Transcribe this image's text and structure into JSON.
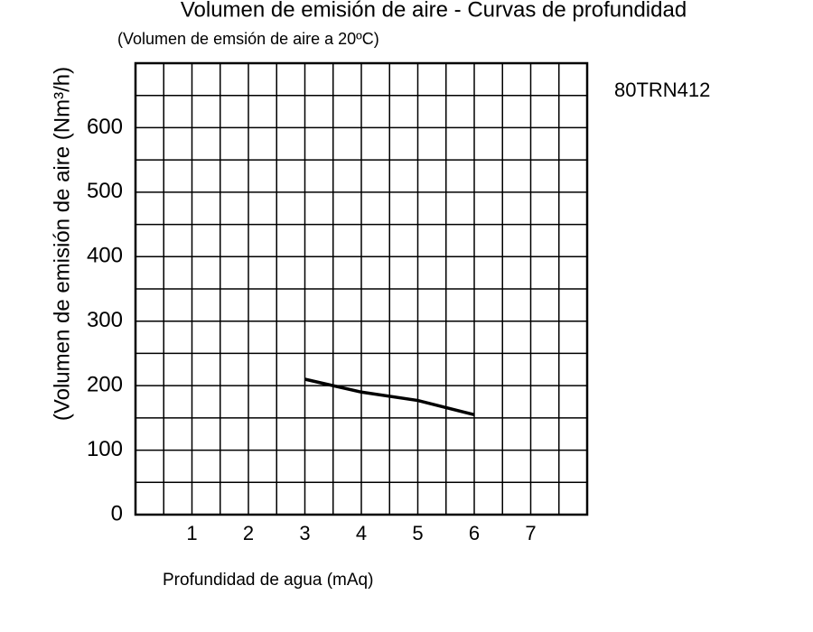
{
  "chart_data": {
    "type": "line",
    "title": "Volumen de emisión de aire - Curvas de profundidad",
    "subtitle": "(Volumen de emsión de aire a 20ºC)",
    "y_label": "(Volumen de emisión de aire (Nm³/h)",
    "x_label": "Profundidad de agua (mAq)",
    "annotation": "80TRN412",
    "x": [
      3,
      4,
      5,
      6
    ],
    "series": [
      {
        "name": "80TRN412",
        "color": "#000000",
        "values": [
          210,
          190,
          177,
          155
        ]
      }
    ],
    "xlim": [
      0,
      8
    ],
    "xticks": [
      1,
      2,
      3,
      4,
      5,
      6,
      7
    ],
    "xminor": [
      0.5,
      1.5,
      2.5,
      3.5,
      4.5,
      5.5,
      6.5,
      7.5
    ],
    "ylim": [
      0,
      700
    ],
    "yticks": [
      0,
      100,
      200,
      300,
      400,
      500,
      600
    ],
    "yminor": [
      50,
      150,
      250,
      350,
      450,
      550,
      650
    ],
    "grid": true
  }
}
